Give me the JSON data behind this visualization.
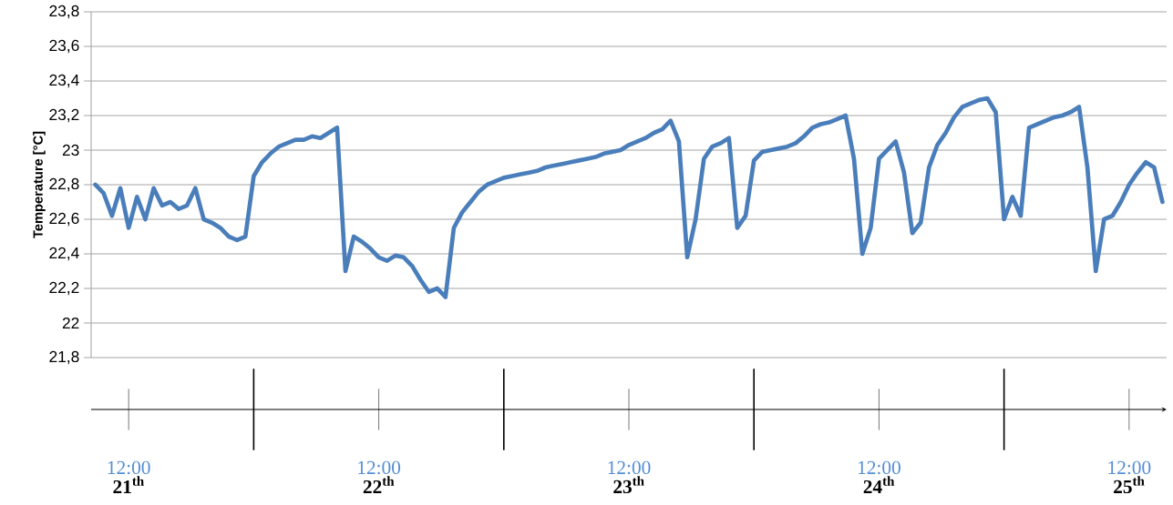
{
  "chart_data": {
    "type": "line",
    "ylabel": "Temperature [°C]",
    "color": "#4a7ebb",
    "line_style": "solid",
    "grid": "y",
    "ylim": [
      21.8,
      23.8
    ],
    "yticks": [
      {
        "value": 21.8,
        "label": "21,8"
      },
      22,
      {
        "value": 22.2,
        "label": "22,2"
      },
      {
        "value": 22.4,
        "label": "22,4"
      },
      {
        "value": 22.6,
        "label": "22,6"
      },
      {
        "value": 22.8,
        "label": "22,8"
      },
      23,
      {
        "value": 23.2,
        "label": "23,2"
      },
      {
        "value": 23.4,
        "label": "23,4"
      },
      {
        "value": 23.6,
        "label": "23,6"
      },
      {
        "value": 23.8,
        "label": "23,8"
      }
    ],
    "annotations": [
      "21$^{th}$",
      "22$^{th}$",
      "23$^{th}$",
      "24$^{th}$",
      "25$^{th}$"
    ],
    "categories": [
      null,
      null,
      null,
      null,
      "12:00",
      null,
      null,
      null,
      null,
      null,
      null,
      null,
      null,
      null,
      null,
      null,
      null,
      null,
      null,
      null,
      null,
      null,
      null,
      null,
      null,
      null,
      null,
      null,
      null,
      null,
      null,
      null,
      null,
      null,
      "12:00",
      null,
      null,
      null,
      null,
      null,
      null,
      null,
      null,
      null,
      null,
      null,
      null,
      null,
      null,
      null,
      null,
      null,
      null,
      null,
      null,
      null,
      null,
      null,
      null,
      null,
      null,
      null,
      null,
      null,
      "12:00",
      null,
      null,
      null,
      null,
      null,
      null,
      null,
      null,
      null,
      null,
      null,
      null,
      null,
      null,
      null,
      null,
      null,
      null,
      null,
      null,
      null,
      null,
      null,
      null,
      null,
      null,
      null,
      null,
      null,
      "12:00",
      null,
      null,
      null,
      null,
      null,
      null,
      null,
      null,
      null,
      null,
      null,
      null,
      null,
      null,
      null,
      null,
      null,
      null,
      null,
      null,
      null,
      null,
      null,
      null,
      null,
      null,
      null,
      null,
      null,
      "12:00",
      null,
      null,
      null,
      null
    ],
    "values": [
      22.8,
      22.75,
      22.62,
      22.78,
      22.55,
      22.73,
      22.6,
      22.78,
      22.68,
      22.7,
      22.66,
      22.68,
      22.78,
      22.6,
      22.58,
      22.55,
      22.5,
      22.48,
      22.5,
      22.85,
      22.93,
      22.98,
      23.02,
      23.04,
      23.06,
      23.06,
      23.08,
      23.07,
      23.1,
      23.13,
      22.3,
      22.5,
      22.47,
      22.43,
      22.38,
      22.36,
      22.39,
      22.38,
      22.33,
      22.25,
      22.18,
      22.2,
      22.15,
      22.55,
      22.64,
      22.7,
      22.76,
      22.8,
      22.82,
      22.84,
      22.85,
      22.86,
      22.87,
      22.88,
      22.9,
      22.91,
      22.92,
      22.93,
      22.94,
      22.95,
      22.96,
      22.98,
      22.99,
      23.0,
      23.03,
      23.05,
      23.07,
      23.1,
      23.12,
      23.17,
      23.05,
      22.38,
      22.6,
      22.95,
      23.02,
      23.04,
      23.07,
      22.55,
      22.62,
      22.94,
      22.99,
      23.0,
      23.01,
      23.02,
      23.04,
      23.08,
      23.13,
      23.15,
      23.16,
      23.18,
      23.2,
      22.95,
      22.4,
      22.55,
      22.95,
      23.0,
      23.05,
      22.87,
      22.52,
      22.58,
      22.9,
      23.03,
      23.1,
      23.19,
      23.25,
      23.27,
      23.29,
      23.3,
      23.22,
      22.6,
      22.73,
      22.62,
      23.13,
      23.15,
      23.17,
      23.19,
      23.2,
      23.22,
      23.25,
      22.9,
      22.3,
      22.6,
      22.62,
      22.7,
      22.8,
      22.87,
      22.93,
      22.9,
      22.7
    ]
  }
}
